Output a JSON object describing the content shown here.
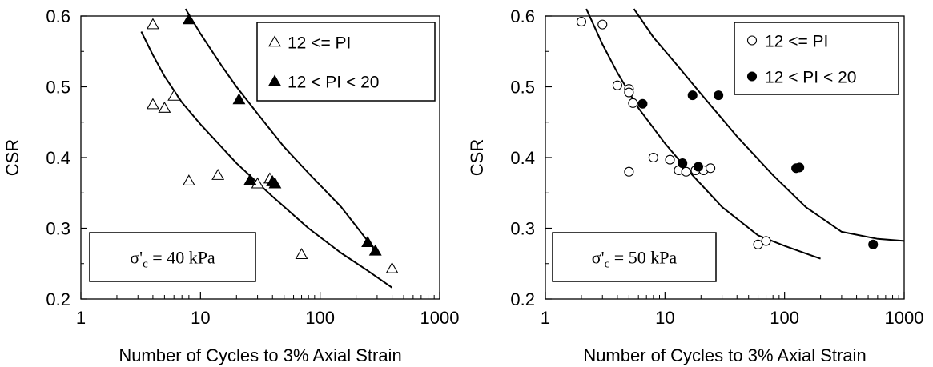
{
  "chart_data": [
    {
      "type": "scatter",
      "xscale": "log",
      "xlim": [
        1,
        1000
      ],
      "ylim": [
        0.2,
        0.6
      ],
      "xticks": [
        "1",
        "10",
        "100",
        "1000"
      ],
      "yticks": [
        "0.2",
        "0.3",
        "0.4",
        "0.5",
        "0.6"
      ],
      "xlabel": "Number of Cycles to 3% Axial Strain",
      "ylabel": "CSR",
      "legend_position": "top-right",
      "annotation": {
        "sigma": "σ'",
        "sub": "c",
        "rest": " = 40 kPa"
      },
      "series": [
        {
          "name": "12 <= PI",
          "marker": "open-triangle",
          "points": [
            [
              4,
              0.588
            ],
            [
              4,
              0.475
            ],
            [
              5,
              0.47
            ],
            [
              6,
              0.487
            ],
            [
              8,
              0.367
            ],
            [
              14,
              0.375
            ],
            [
              30,
              0.363
            ],
            [
              38,
              0.37
            ],
            [
              70,
              0.263
            ],
            [
              400,
              0.243
            ]
          ]
        },
        {
          "name": "12 < PI < 20",
          "marker": "filled-triangle",
          "points": [
            [
              8,
              0.595
            ],
            [
              21,
              0.482
            ],
            [
              26,
              0.368
            ],
            [
              40,
              0.366
            ],
            [
              42,
              0.363
            ],
            [
              250,
              0.28
            ],
            [
              290,
              0.268
            ]
          ]
        }
      ],
      "curves": [
        [
          [
            3.2,
            0.578
          ],
          [
            4,
            0.545
          ],
          [
            5,
            0.515
          ],
          [
            7,
            0.478
          ],
          [
            10,
            0.447
          ],
          [
            20,
            0.392
          ],
          [
            40,
            0.345
          ],
          [
            80,
            0.3
          ],
          [
            150,
            0.265
          ],
          [
            250,
            0.24
          ],
          [
            400,
            0.216
          ]
        ],
        [
          [
            7.5,
            0.61
          ],
          [
            10,
            0.575
          ],
          [
            15,
            0.53
          ],
          [
            20,
            0.5
          ],
          [
            30,
            0.462
          ],
          [
            50,
            0.415
          ],
          [
            80,
            0.378
          ],
          [
            150,
            0.33
          ],
          [
            300,
            0.265
          ]
        ]
      ]
    },
    {
      "type": "scatter",
      "xscale": "log",
      "xlim": [
        1,
        1000
      ],
      "ylim": [
        0.2,
        0.6
      ],
      "xticks": [
        "1",
        "10",
        "100",
        "1000"
      ],
      "yticks": [
        "0.2",
        "0.3",
        "0.4",
        "0.5",
        "0.6"
      ],
      "xlabel": "Number of Cycles to 3% Axial Strain",
      "ylabel": "CSR",
      "legend_position": "top-right",
      "annotation": {
        "sigma": "σ'",
        "sub": "c",
        "rest": " = 50 kPa"
      },
      "series": [
        {
          "name": "12 <= PI",
          "marker": "open-circle",
          "points": [
            [
              2,
              0.592
            ],
            [
              3,
              0.588
            ],
            [
              4,
              0.502
            ],
            [
              5,
              0.497
            ],
            [
              5,
              0.492
            ],
            [
              5.4,
              0.477
            ],
            [
              5,
              0.38
            ],
            [
              8,
              0.4
            ],
            [
              11,
              0.397
            ],
            [
              13,
              0.382
            ],
            [
              15,
              0.38
            ],
            [
              18,
              0.382
            ],
            [
              21,
              0.382
            ],
            [
              24,
              0.385
            ],
            [
              60,
              0.277
            ],
            [
              70,
              0.282
            ]
          ]
        },
        {
          "name": "12 < PI < 20",
          "marker": "filled-circle",
          "points": [
            [
              6.5,
              0.476
            ],
            [
              14,
              0.392
            ],
            [
              17,
              0.488
            ],
            [
              19,
              0.387
            ],
            [
              28,
              0.488
            ],
            [
              125,
              0.385
            ],
            [
              133,
              0.386
            ],
            [
              550,
              0.277
            ]
          ]
        }
      ],
      "curves": [
        [
          [
            2.2,
            0.61
          ],
          [
            3,
            0.56
          ],
          [
            4,
            0.52
          ],
          [
            6,
            0.47
          ],
          [
            10,
            0.42
          ],
          [
            15,
            0.385
          ],
          [
            30,
            0.33
          ],
          [
            60,
            0.29
          ],
          [
            100,
            0.275
          ],
          [
            200,
            0.257
          ]
        ],
        [
          [
            5.5,
            0.61
          ],
          [
            8,
            0.57
          ],
          [
            12,
            0.535
          ],
          [
            20,
            0.49
          ],
          [
            40,
            0.43
          ],
          [
            80,
            0.375
          ],
          [
            150,
            0.33
          ],
          [
            300,
            0.295
          ],
          [
            600,
            0.285
          ],
          [
            1000,
            0.282
          ]
        ]
      ]
    }
  ]
}
